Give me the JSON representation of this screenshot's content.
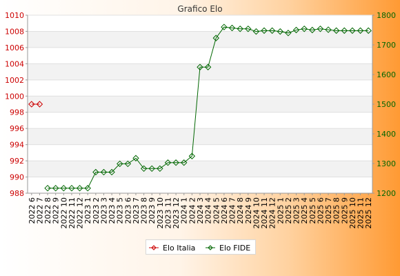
{
  "chart_data": {
    "type": "line",
    "title": "Grafico Elo",
    "categories": [
      "2022 6",
      "2022 7",
      "2022 8",
      "2022 9",
      "2022 10",
      "2022 11",
      "2022 12",
      "2023 1",
      "2023 2",
      "2023 3",
      "2023 4",
      "2023 5",
      "2023 6",
      "2023 7",
      "2023 8",
      "2023 9",
      "2023 10",
      "2023 11",
      "2023 12",
      "2024 1",
      "2024 2",
      "2024 3",
      "2024 4",
      "2024 5",
      "2024 6",
      "2024 7",
      "2024 8",
      "2024 9",
      "2024 10",
      "2024 11",
      "2024 12",
      "2025 1",
      "2025 2",
      "2025 3",
      "2025 4",
      "2025 5",
      "2025 6",
      "2025 7",
      "2025 8",
      "2025 9",
      "2025 10",
      "2025 11",
      "2025 12"
    ],
    "y_left": {
      "min": 988,
      "max": 1010,
      "step": 2,
      "ticks": [
        "988",
        "990",
        "992",
        "994",
        "996",
        "998",
        "1000",
        "1002",
        "1004",
        "1006",
        "1008",
        "1010"
      ],
      "color": "#cc0000"
    },
    "y_right": {
      "min": 1200,
      "max": 1800,
      "step": 100,
      "ticks": [
        "1200",
        "1300",
        "1400",
        "1500",
        "1600",
        "1700",
        "1800"
      ],
      "color": "#006600"
    },
    "grid": true,
    "legend_position": "bottom",
    "series": [
      {
        "name": "Elo Italia",
        "axis": "left",
        "color": "#cc0000",
        "values": [
          999,
          999,
          null,
          null,
          null,
          null,
          null,
          null,
          null,
          null,
          null,
          null,
          null,
          null,
          null,
          null,
          null,
          null,
          null,
          null,
          null,
          null,
          null,
          null,
          null,
          null,
          null,
          null,
          null,
          null,
          null,
          null,
          null,
          null,
          null,
          null,
          null,
          null,
          null,
          null,
          null,
          null,
          null
        ]
      },
      {
        "name": "Elo FIDE",
        "axis": "right",
        "color": "#006600",
        "values": [
          null,
          null,
          1217,
          1217,
          1217,
          1217,
          1217,
          1217,
          1271,
          1271,
          1271,
          1299,
          1299,
          1318,
          1283,
          1283,
          1283,
          1303,
          1303,
          1303,
          1325,
          1625,
          1625,
          1723,
          1760,
          1757,
          1754,
          1754,
          1745,
          1748,
          1748,
          1745,
          1740,
          1750,
          1754,
          1750,
          1754,
          1751,
          1748,
          1748,
          1748,
          1748,
          1748
        ]
      }
    ]
  }
}
